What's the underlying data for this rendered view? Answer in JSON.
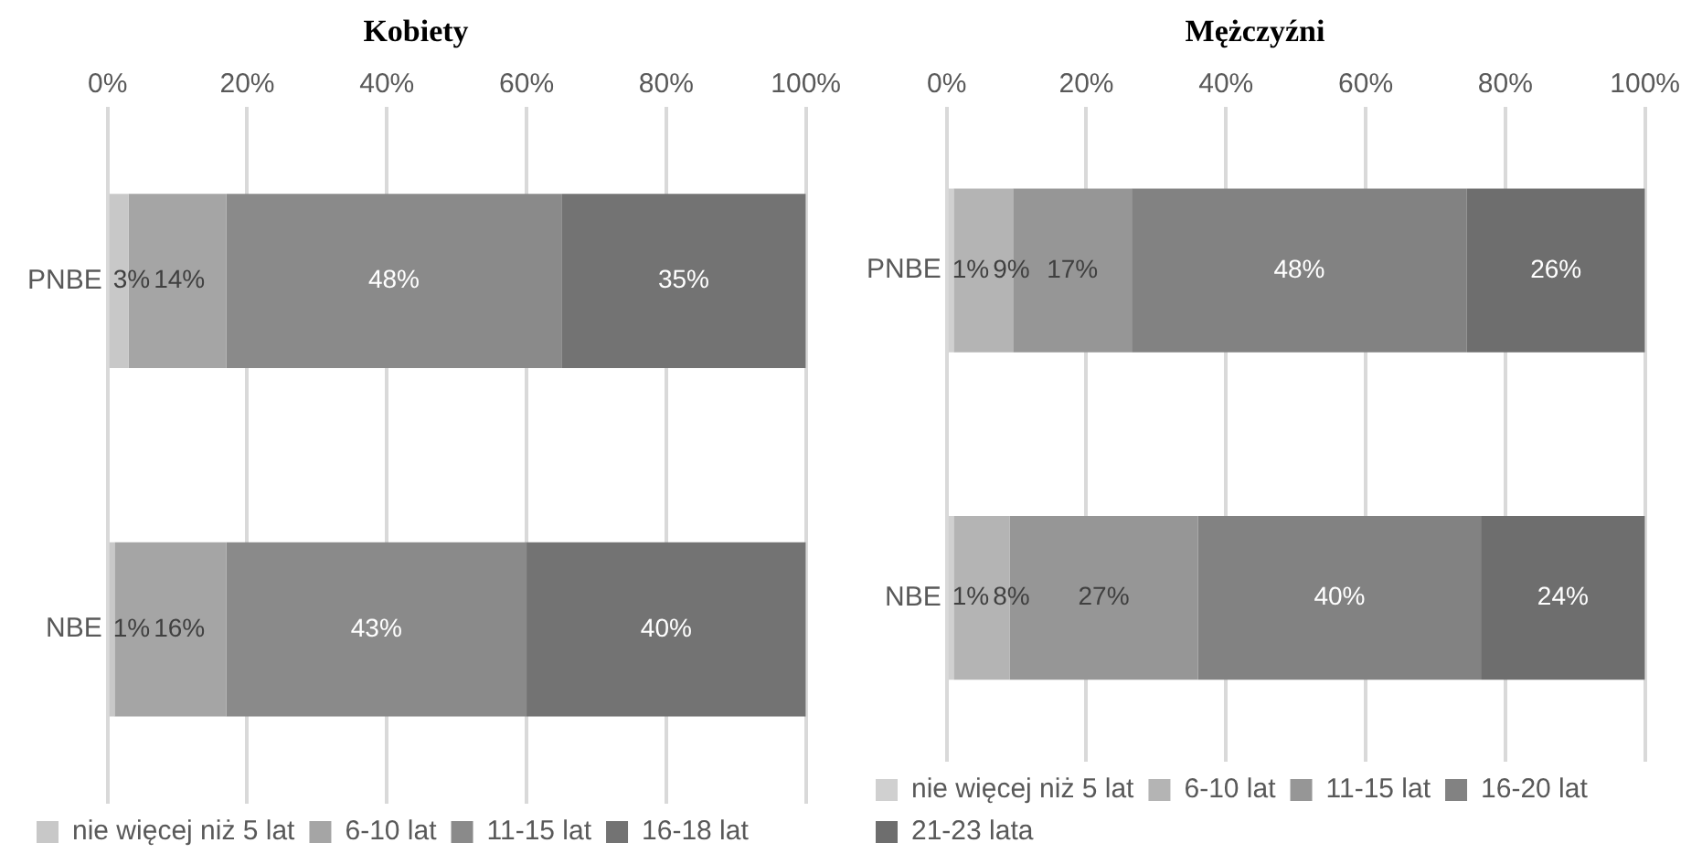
{
  "chart_data": [
    {
      "type": "bar",
      "title": "Kobiety",
      "orientation": "horizontal",
      "stacked": true,
      "categories": [
        "PNBE",
        "NBE"
      ],
      "series": [
        {
          "name": "nie więcej niż 5 lat",
          "color": "#c8c8c8",
          "values": [
            3,
            1
          ],
          "value_labels": [
            "3%",
            "1%"
          ]
        },
        {
          "name": "6-10 lat",
          "color": "#a5a5a5",
          "values": [
            14,
            16
          ],
          "value_labels": [
            "14%",
            "16%"
          ]
        },
        {
          "name": "11-15 lat",
          "color": "#8a8a8a",
          "values": [
            48,
            43
          ],
          "value_labels": [
            "48%",
            "43%"
          ]
        },
        {
          "name": "16-18 lat",
          "color": "#737373",
          "values": [
            35,
            40
          ],
          "value_labels": [
            "35%",
            "40%"
          ]
        }
      ],
      "xlim": [
        0,
        100
      ],
      "xticks": [
        {
          "value": 0,
          "label": "0%"
        },
        {
          "value": 20,
          "label": "20%"
        },
        {
          "value": 40,
          "label": "40%"
        },
        {
          "value": 60,
          "label": "60%"
        },
        {
          "value": 80,
          "label": "80%"
        },
        {
          "value": 100,
          "label": "100%"
        }
      ],
      "grid": "x",
      "legend": "bottom"
    },
    {
      "type": "bar",
      "title": "Mężczyźni",
      "orientation": "horizontal",
      "stacked": true,
      "categories": [
        "PNBE",
        "NBE"
      ],
      "series": [
        {
          "name": "nie więcej niż 5 lat",
          "color": "#d0d0d0",
          "values": [
            1,
            1
          ],
          "value_labels": [
            "1%",
            "1%"
          ]
        },
        {
          "name": "6-10 lat",
          "color": "#b4b4b4",
          "values": [
            8.5,
            8
          ],
          "value_labels": [
            "9%",
            "8%"
          ]
        },
        {
          "name": "11-15 lat",
          "color": "#969696",
          "values": [
            17,
            27
          ],
          "value_labels": [
            "17%",
            "27%"
          ]
        },
        {
          "name": "16-20 lat",
          "color": "#828282",
          "values": [
            48,
            40.5
          ],
          "value_labels": [
            "48%",
            "40%"
          ]
        },
        {
          "name": "21-23 lata",
          "color": "#6e6e6e",
          "values": [
            25.5,
            23.5
          ],
          "value_labels": [
            "26%",
            "24%"
          ]
        }
      ],
      "xlim": [
        0,
        100
      ],
      "xticks": [
        {
          "value": 0,
          "label": "0%"
        },
        {
          "value": 20,
          "label": "20%"
        },
        {
          "value": 40,
          "label": "40%"
        },
        {
          "value": 60,
          "label": "60%"
        },
        {
          "value": 80,
          "label": "80%"
        },
        {
          "value": 100,
          "label": "100%"
        }
      ],
      "grid": "x",
      "legend": "bottom"
    }
  ]
}
